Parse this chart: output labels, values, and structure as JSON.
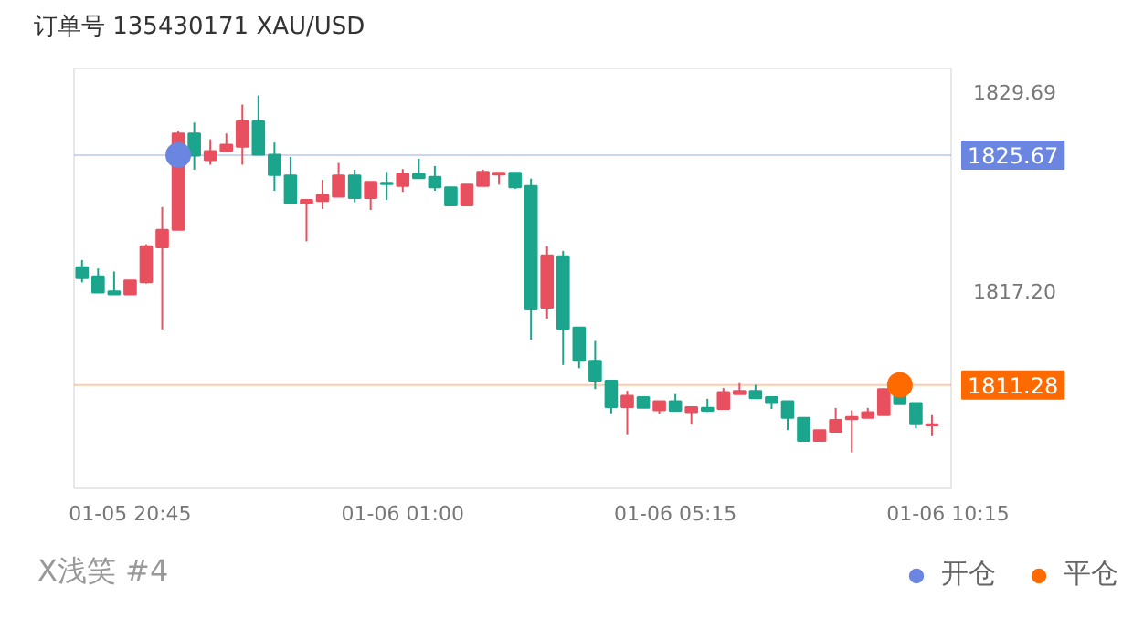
{
  "chart_data": {
    "type": "candlestick",
    "title": "订单号 135430171    XAU/USD",
    "categories": [
      null,
      null,
      null,
      "01-05 20:45",
      null,
      null,
      null,
      null,
      null,
      null,
      null,
      null,
      null,
      null,
      null,
      null,
      null,
      null,
      null,
      null,
      "01-06 01:00",
      null,
      null,
      null,
      null,
      null,
      null,
      null,
      null,
      null,
      null,
      null,
      null,
      null,
      null,
      null,
      null,
      "01-06 05:15",
      null,
      null,
      null,
      null,
      null,
      null,
      null,
      null,
      null,
      null,
      null,
      null,
      null,
      null,
      null,
      null,
      "01-06 10:15"
    ],
    "ohlc": [
      [
        1818.65,
        1819.1,
        1817.7,
        1817.97
      ],
      [
        1818.08,
        1818.57,
        1817.06,
        1817.06
      ],
      [
        1817.14,
        1818.38,
        1816.95,
        1816.95
      ],
      [
        1816.95,
        1817.82,
        1816.95,
        1817.82
      ],
      [
        1817.7,
        1820.08,
        1817.63,
        1819.97
      ],
      [
        1819.89,
        1822.42,
        1814.76,
        1820.99
      ],
      [
        1820.99,
        1827.22,
        1820.99,
        1827.03
      ],
      [
        1827.03,
        1827.71,
        1824.76,
        1825.64
      ],
      [
        1825.36,
        1826.66,
        1825.07,
        1825.93
      ],
      [
        1825.93,
        1827.03,
        1825.93,
        1826.32
      ],
      [
        1826.2,
        1828.84,
        1825.07,
        1827.79
      ],
      [
        1827.79,
        1829.41,
        1825.7,
        1825.7
      ],
      [
        1825.7,
        1826.46,
        1823.44,
        1824.42
      ],
      [
        1824.39,
        1825.56,
        1822.64,
        1822.64
      ],
      [
        1822.64,
        1822.87,
        1820.27,
        1822.87
      ],
      [
        1822.8,
        1824.12,
        1822.3,
        1823.18
      ],
      [
        1823.06,
        1825.18,
        1823.06,
        1824.39
      ],
      [
        1824.39,
        1824.76,
        1822.72,
        1822.98
      ],
      [
        1822.98,
        1824.0,
        1822.24,
        1824.0
      ],
      [
        1823.94,
        1824.62,
        1822.87,
        1823.86
      ],
      [
        1823.74,
        1824.8,
        1823.37,
        1824.5
      ],
      [
        1824.5,
        1825.44,
        1824.23,
        1824.23
      ],
      [
        1824.31,
        1824.99,
        1823.44,
        1823.66
      ],
      [
        1823.66,
        1823.66,
        1822.53,
        1822.53
      ],
      [
        1822.53,
        1823.82,
        1822.53,
        1823.82
      ],
      [
        1823.74,
        1824.76,
        1823.74,
        1824.62
      ],
      [
        1824.46,
        1824.57,
        1823.82,
        1824.57
      ],
      [
        1824.57,
        1824.57,
        1823.55,
        1823.66
      ],
      [
        1823.74,
        1824.2,
        1814.11,
        1816.01
      ],
      [
        1816.12,
        1819.97,
        1815.44,
        1819.4
      ],
      [
        1819.33,
        1819.67,
        1812.53,
        1814.79
      ],
      [
        1814.87,
        1814.87,
        1812.33,
        1812.79
      ],
      [
        1812.79,
        1814.03,
        1811.02,
        1811.54
      ],
      [
        1811.54,
        1811.54,
        1809.5,
        1809.89
      ],
      [
        1809.89,
        1810.91,
        1808.19,
        1810.6
      ],
      [
        1810.52,
        1810.52,
        1809.84,
        1809.84
      ],
      [
        1809.69,
        1810.26,
        1809.47,
        1810.26
      ],
      [
        1810.26,
        1810.71,
        1809.66,
        1809.66
      ],
      [
        1809.58,
        1809.89,
        1808.82,
        1809.89
      ],
      [
        1809.84,
        1810.41,
        1809.58,
        1809.66
      ],
      [
        1809.77,
        1811.09,
        1809.77,
        1810.83
      ],
      [
        1810.71,
        1811.39,
        1810.71,
        1810.91
      ],
      [
        1810.91,
        1811.28,
        1810.45,
        1810.45
      ],
      [
        1810.52,
        1810.52,
        1809.77,
        1810.15
      ],
      [
        1810.26,
        1810.26,
        1808.45,
        1809.21
      ],
      [
        1809.21,
        1809.21,
        1807.77,
        1807.77
      ],
      [
        1807.77,
        1808.45,
        1807.77,
        1808.45
      ],
      [
        1808.34,
        1809.84,
        1808.34,
        1809.09
      ],
      [
        1809.13,
        1809.69,
        1807.05,
        1809.28
      ],
      [
        1809.21,
        1809.84,
        1809.21,
        1809.58
      ],
      [
        1809.39,
        1811.02,
        1809.39,
        1811.02
      ],
      [
        1810.71,
        1810.71,
        1810.07,
        1810.07
      ],
      [
        1810.15,
        1810.15,
        1808.56,
        1808.82
      ],
      [
        1808.75,
        1809.39,
        1808.07,
        1808.82
      ],
      null
    ],
    "colors": [
      "#1aa58c",
      "#1aa58c",
      "#1aa58c",
      "#e9505f",
      "#e9505f",
      "#e9505f",
      "#e9505f",
      "#1aa58c",
      "#e9505f",
      "#e9505f",
      "#e9505f",
      "#1aa58c",
      "#1aa58c",
      "#1aa58c",
      "#e9505f",
      "#e9505f",
      "#e9505f",
      "#1aa58c",
      "#e9505f",
      "#1aa58c",
      "#e9505f",
      "#1aa58c",
      "#1aa58c",
      "#1aa58c",
      "#e9505f",
      "#e9505f",
      "#e9505f",
      "#1aa58c",
      "#1aa58c",
      "#e9505f",
      "#1aa58c",
      "#1aa58c",
      "#1aa58c",
      "#1aa58c",
      "#e9505f",
      "#1aa58c",
      "#e9505f",
      "#1aa58c",
      "#e9505f",
      "#1aa58c",
      "#e9505f",
      "#e9505f",
      "#1aa58c",
      "#1aa58c",
      "#1aa58c",
      "#1aa58c",
      "#e9505f",
      "#e9505f",
      "#e9505f",
      "#e9505f",
      "#e9505f",
      "#1aa58c",
      "#1aa58c",
      "#e9505f",
      null
    ],
    "series": [
      {
        "name": "开仓",
        "type": "scatter",
        "color": "#6b86e0",
        "values": [
          null,
          null,
          null,
          null,
          null,
          null,
          1825.67,
          null,
          null,
          null,
          null,
          null,
          null,
          null,
          null,
          null,
          null,
          null,
          null,
          null,
          null,
          null,
          null,
          null,
          null,
          null,
          null,
          null,
          null,
          null,
          null,
          null,
          null,
          null,
          null,
          null,
          null,
          null,
          null,
          null,
          null,
          null,
          null,
          null,
          null,
          null,
          null,
          null,
          null,
          null,
          null,
          null,
          null,
          null,
          null
        ]
      },
      {
        "name": "平仓",
        "type": "scatter",
        "color": "#ff6a00",
        "values": [
          null,
          null,
          null,
          null,
          null,
          null,
          null,
          null,
          null,
          null,
          null,
          null,
          null,
          null,
          null,
          null,
          null,
          null,
          null,
          null,
          null,
          null,
          null,
          null,
          null,
          null,
          null,
          null,
          null,
          null,
          null,
          null,
          null,
          null,
          null,
          null,
          null,
          null,
          null,
          null,
          null,
          null,
          null,
          null,
          null,
          null,
          null,
          null,
          null,
          null,
          null,
          1811.28,
          null,
          null,
          null
        ]
      }
    ],
    "marker": "circle",
    "ylim": [
      1804.8,
      1831.1
    ],
    "yticks": [
      1829.69,
      {
        "value": 1817.2,
        "label": "1817.20"
      }
    ],
    "ref_lines": [
      {
        "axis": "y",
        "value": 1825.67,
        "label": "1825.67",
        "color": "#6b86e0"
      },
      {
        "axis": "y",
        "value": 1811.28,
        "label": "1811.28",
        "color": "#ff6a00"
      }
    ],
    "legend": "bottom right",
    "annotations": [
      "X浅笑 #4"
    ]
  }
}
